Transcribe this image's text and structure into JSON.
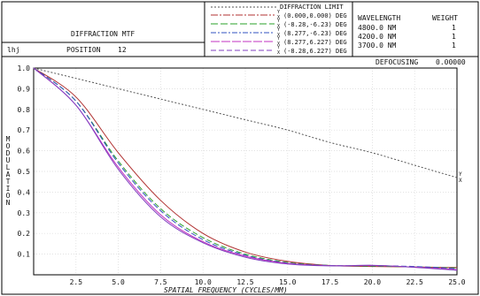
{
  "header": {
    "title": "DIFFRACTION MTF",
    "label": "lhj",
    "position_label": "POSITION",
    "position_value": "12",
    "defocusing_label": "DEFOCUSING",
    "defocusing_value": "0.00000"
  },
  "legend": {
    "diffraction_limit": "DIFFRACTION LIMIT",
    "entries": [
      {
        "yx": "Y\nX",
        "text": "(0.000,0.000) DEG",
        "color": "#b03030",
        "dash": "8,2,2,2"
      },
      {
        "yx": "Y\nX",
        "text": "(-8.28,-6.23) DEG",
        "color": "#2aa02a",
        "dash": "8,3"
      },
      {
        "yx": "Y\nX",
        "text": "(8.277,-6.23) DEG",
        "color": "#3050c0",
        "dash": "6,2,2,2"
      },
      {
        "yx": "Y\nX",
        "text": "(8.277,6.227) DEG",
        "color": "#c030c0",
        "dash": "10,2"
      },
      {
        "yx": "Y\nX",
        "text": "(-8.28,6.227) DEG",
        "color": "#8040c0",
        "dash": "6,3"
      }
    ]
  },
  "wavelengths": {
    "header_wavelength": "WAVELENGTH",
    "header_weight": "WEIGHT",
    "rows": [
      {
        "wavelength": "4800.0 NM",
        "weight": "1"
      },
      {
        "wavelength": "4200.0 NM",
        "weight": "1"
      },
      {
        "wavelength": "3700.0 NM",
        "weight": "1"
      }
    ]
  },
  "chart_data": {
    "type": "line",
    "title": "DIFFRACTION MTF",
    "xlabel": "SPATIAL FREQUENCY (CYCLES/MM)",
    "ylabel": "MODULATION",
    "xlim": [
      0,
      25
    ],
    "ylim": [
      0,
      1.0
    ],
    "x_ticks": [
      "2.5",
      "5.0",
      "7.5",
      "10.0",
      "12.5",
      "15.0",
      "17.5",
      "20.0",
      "22.5",
      "25.0"
    ],
    "y_ticks": [
      "0.1",
      "0.2",
      "0.3",
      "0.4",
      "0.5",
      "0.6",
      "0.7",
      "0.8",
      "0.9",
      "1.0"
    ],
    "end_labels": [
      "Y",
      "X"
    ],
    "x": [
      0,
      2.5,
      5,
      7.5,
      10,
      12.5,
      15,
      17.5,
      20,
      22.5,
      25
    ],
    "series": [
      {
        "name": "DIFFRACTION LIMIT",
        "color": "#555555",
        "dash": "2,2",
        "values": [
          1.0,
          0.95,
          0.9,
          0.85,
          0.8,
          0.75,
          0.7,
          0.64,
          0.59,
          0.53,
          0.47
        ]
      },
      {
        "name": "(0.000,0.000) DEG",
        "color": "#b03030",
        "dash": "",
        "values": [
          1.0,
          0.86,
          0.59,
          0.36,
          0.2,
          0.11,
          0.065,
          0.045,
          0.04,
          0.038,
          0.035
        ]
      },
      {
        "name": "(-8.28,-6.23) DEG",
        "color": "#2aa02a",
        "dash": "6,3",
        "values": [
          1.0,
          0.84,
          0.55,
          0.32,
          0.18,
          0.1,
          0.06,
          0.045,
          0.042,
          0.038,
          0.033
        ]
      },
      {
        "name": "(8.277,-6.23) DEG",
        "color": "#3050c0",
        "dash": "6,3",
        "values": [
          1.0,
          0.84,
          0.54,
          0.31,
          0.17,
          0.095,
          0.057,
          0.045,
          0.044,
          0.04,
          0.03
        ]
      },
      {
        "name": "(8.277,6.227) DEG",
        "color": "#c030c0",
        "dash": "",
        "values": [
          1.0,
          0.82,
          0.52,
          0.29,
          0.16,
          0.09,
          0.055,
          0.044,
          0.045,
          0.037,
          0.025
        ]
      },
      {
        "name": "(-8.28,6.227) DEG",
        "color": "#8040c0",
        "dash": "",
        "values": [
          1.0,
          0.82,
          0.51,
          0.28,
          0.155,
          0.085,
          0.052,
          0.043,
          0.046,
          0.036,
          0.022
        ]
      }
    ]
  }
}
